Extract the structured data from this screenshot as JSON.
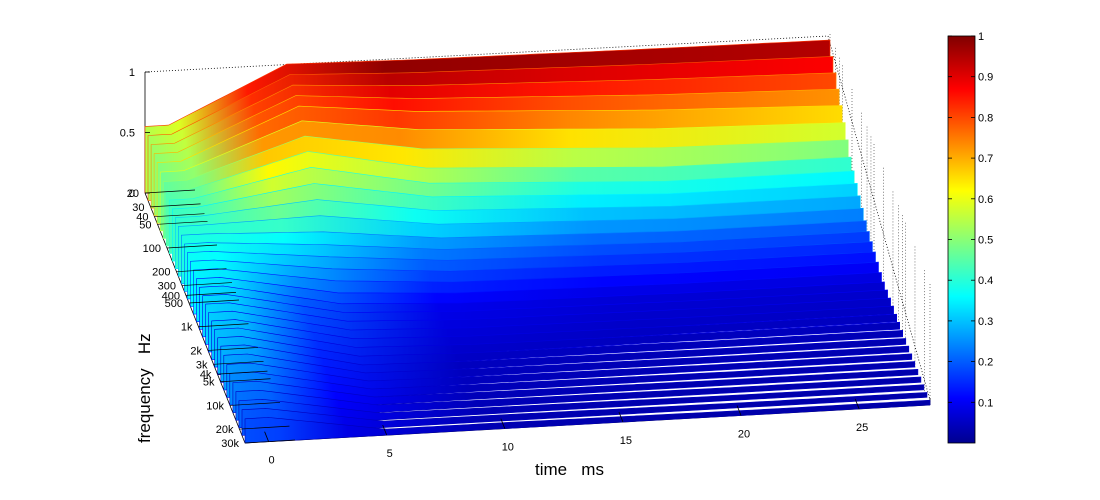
{
  "chart_data": {
    "type": "heatmap",
    "subtype": "waterfall-3d-surface",
    "title": "",
    "xlabel": "time   ms",
    "ylabel": "frequency   Hz",
    "zlabel": "",
    "x_ticks": [
      0,
      5,
      10,
      15,
      20,
      25
    ],
    "x_tick_labels": [
      "0",
      "5",
      "10",
      "15",
      "20",
      "25"
    ],
    "xlim": [
      -1,
      28
    ],
    "y_ticks": [
      20,
      30,
      40,
      50,
      100,
      200,
      300,
      400,
      500,
      1000,
      2000,
      3000,
      4000,
      5000,
      10000,
      20000,
      30000
    ],
    "y_tick_labels": [
      "20",
      "30",
      "40",
      "50",
      "100",
      "200",
      "300",
      "400",
      "500",
      "1k",
      "2k",
      "3k",
      "4k",
      "5k",
      "10k",
      "20k",
      "30k"
    ],
    "y_scale": "log",
    "z_ticks": [
      0,
      0.5,
      1
    ],
    "z_tick_labels": [
      "0",
      "0.5",
      "1"
    ],
    "zlim": [
      0,
      1
    ],
    "colormap": "jet",
    "colorbar_ticks": [
      0.1,
      0.2,
      0.3,
      0.4,
      0.5,
      0.6,
      0.7,
      0.8,
      0.9,
      1
    ],
    "colorbar_tick_labels": [
      "0.1",
      "0.2",
      "0.3",
      "0.4",
      "0.5",
      "0.6",
      "0.7",
      "0.8",
      "0.9",
      "1"
    ],
    "colorbar_range": [
      0,
      1
    ],
    "grid": true,
    "series": [
      {
        "frequency": 20,
        "values_at_time": {
          "0": 0.55,
          "5": 1.0,
          "10": 0.98,
          "20": 0.96,
          "28": 0.95
        }
      },
      {
        "frequency": 50,
        "values_at_time": {
          "0": 0.5,
          "5": 0.9,
          "10": 0.8,
          "20": 0.7,
          "28": 0.65
        }
      },
      {
        "frequency": 100,
        "values_at_time": {
          "0": 0.45,
          "5": 0.7,
          "10": 0.5,
          "20": 0.4,
          "28": 0.4
        }
      },
      {
        "frequency": 300,
        "values_at_time": {
          "0": 0.4,
          "5": 0.35,
          "10": 0.25,
          "20": 0.2,
          "28": 0.2
        }
      },
      {
        "frequency": 1000,
        "values_at_time": {
          "0": 0.35,
          "5": 0.15,
          "10": 0.1,
          "20": 0.08,
          "28": 0.08
        }
      },
      {
        "frequency": 5000,
        "values_at_time": {
          "0": 0.3,
          "5": 0.08,
          "10": 0.06,
          "20": 0.05,
          "28": 0.05
        }
      },
      {
        "frequency": 30000,
        "values_at_time": {
          "0": 0.2,
          "5": 0.05,
          "10": 0.05,
          "20": 0.04,
          "28": 0.04
        }
      }
    ]
  }
}
